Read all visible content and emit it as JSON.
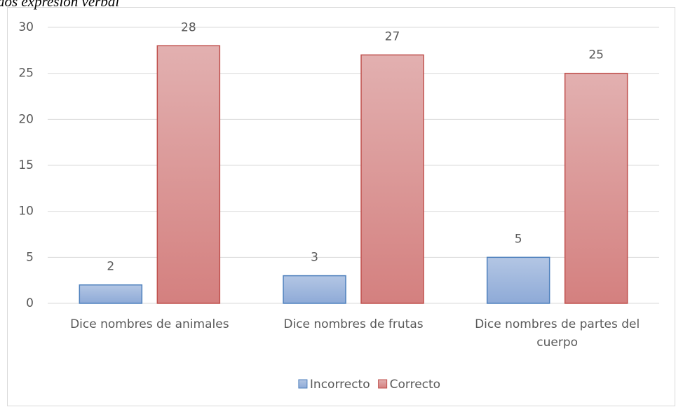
{
  "chart_data": {
    "type": "bar",
    "title": "dos expresión verbal",
    "categories": [
      "Dice nombres de animales",
      "Dice nombres de frutas",
      "Dice nombres de partes del cuerpo"
    ],
    "series": [
      {
        "name": "Incorrecto",
        "color": "#4f81bd",
        "values": [
          2,
          3,
          5
        ]
      },
      {
        "name": "Correcto",
        "color": "#c0504d",
        "values": [
          28,
          27,
          25
        ]
      }
    ],
    "ylim": [
      0,
      30
    ],
    "yticks": [
      0,
      5,
      10,
      15,
      20,
      25,
      30
    ],
    "grid": true,
    "legend": "bottom"
  }
}
